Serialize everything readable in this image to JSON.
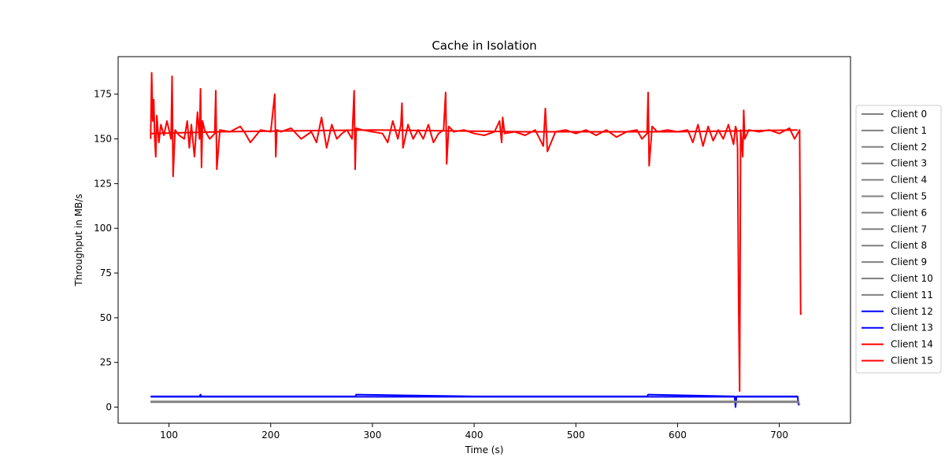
{
  "chart_data": {
    "type": "line",
    "title": "Cache in  Isolation",
    "xlabel": "Time (s)",
    "ylabel": "Throughput in MB/s",
    "xlim": [
      50,
      770
    ],
    "ylim": [
      -9,
      196
    ],
    "xticks": [
      100,
      200,
      300,
      400,
      500,
      600,
      700
    ],
    "yticks": [
      0,
      25,
      50,
      75,
      100,
      125,
      150,
      175
    ],
    "grid": false,
    "legend_placement": "outside-right",
    "colors": {
      "gray": "#808080",
      "blue": "#0000ff",
      "red": "#ff0000"
    },
    "legend": [
      {
        "name": "Client 0",
        "color": "#808080"
      },
      {
        "name": "Client 1",
        "color": "#808080"
      },
      {
        "name": "Client 2",
        "color": "#808080"
      },
      {
        "name": "Client 3",
        "color": "#808080"
      },
      {
        "name": "Client 4",
        "color": "#808080"
      },
      {
        "name": "Client 5",
        "color": "#808080"
      },
      {
        "name": "Client 6",
        "color": "#808080"
      },
      {
        "name": "Client 7",
        "color": "#808080"
      },
      {
        "name": "Client 8",
        "color": "#808080"
      },
      {
        "name": "Client 9",
        "color": "#808080"
      },
      {
        "name": "Client 10",
        "color": "#808080"
      },
      {
        "name": "Client 11",
        "color": "#808080"
      },
      {
        "name": "Client 12",
        "color": "#0000ff"
      },
      {
        "name": "Client 13",
        "color": "#0000ff"
      },
      {
        "name": "Client 14",
        "color": "#ff0000"
      },
      {
        "name": "Client 15",
        "color": "#ff0000"
      }
    ],
    "series": [
      {
        "name": "Client 15",
        "color": "#ff0000",
        "x": [
          82,
          83,
          84,
          85,
          86,
          87,
          88,
          90,
          92,
          95,
          98,
          100,
          102,
          103,
          104,
          106,
          110,
          115,
          118,
          120,
          122,
          125,
          128,
          130,
          131,
          132,
          133,
          135,
          140,
          145,
          146,
          147,
          150,
          160,
          170,
          175,
          180,
          190,
          200,
          204,
          205,
          206,
          210,
          220,
          230,
          240,
          245,
          250,
          255,
          260,
          265,
          270,
          275,
          280,
          282,
          283,
          284,
          290,
          300,
          310,
          315,
          320,
          325,
          328,
          329,
          330,
          335,
          340,
          345,
          350,
          355,
          360,
          365,
          370,
          372,
          373,
          375,
          380,
          390,
          400,
          410,
          420,
          425,
          427,
          428,
          430,
          440,
          450,
          460,
          468,
          470,
          472,
          480,
          490,
          500,
          510,
          520,
          530,
          540,
          550,
          560,
          565,
          570,
          571,
          572,
          575,
          580,
          590,
          600,
          610,
          615,
          620,
          625,
          630,
          635,
          640,
          645,
          650,
          655,
          657,
          658,
          659,
          660,
          661,
          662,
          664,
          665,
          666,
          670,
          680,
          690,
          700,
          710,
          715,
          720,
          721,
          722
        ],
        "y": [
          150,
          187,
          160,
          172,
          150,
          140,
          163,
          148,
          158,
          152,
          160,
          155,
          150,
          185,
          129,
          155,
          152,
          150,
          160,
          145,
          158,
          140,
          165,
          150,
          178,
          134,
          160,
          155,
          150,
          153,
          177,
          133,
          155,
          154,
          157,
          153,
          148,
          155,
          154,
          175,
          140,
          155,
          154,
          156,
          150,
          154,
          148,
          162,
          145,
          158,
          150,
          153,
          155,
          150,
          177,
          133,
          156,
          155,
          154,
          153,
          148,
          160,
          150,
          158,
          170,
          145,
          158,
          150,
          155,
          150,
          158,
          148,
          153,
          155,
          176,
          136,
          157,
          154,
          155,
          153,
          152,
          154,
          160,
          148,
          162,
          153,
          154,
          152,
          155,
          146,
          167,
          143,
          154,
          155,
          153,
          155,
          152,
          155,
          151,
          154,
          155,
          150,
          153,
          176,
          135,
          157,
          154,
          155,
          154,
          155,
          148,
          158,
          146,
          157,
          149,
          155,
          150,
          158,
          147,
          157,
          155,
          145,
          60,
          9,
          155,
          140,
          166,
          150,
          155,
          154,
          155,
          153,
          156,
          150,
          155,
          52,
          52
        ]
      },
      {
        "name": "Client 14",
        "color": "#ff0000",
        "x": [
          82,
          150,
          300,
          450,
          600,
          718
        ],
        "y": [
          153,
          154,
          155,
          154,
          154,
          155
        ]
      },
      {
        "name": "Client 12",
        "color": "#0000ff",
        "x": [
          82,
          100,
          130,
          131,
          132,
          200,
          283,
          284,
          400,
          500,
          570,
          571,
          656,
          657,
          658,
          659,
          660,
          718,
          719
        ],
        "y": [
          6,
          6,
          6,
          7,
          6,
          6,
          6,
          7,
          6,
          6,
          6,
          7,
          6,
          0,
          6,
          6,
          6,
          6,
          1
        ]
      },
      {
        "name": "Client 13",
        "color": "#0000ff",
        "x": [
          82,
          300,
          500,
          718
        ],
        "y": [
          5.8,
          5.8,
          5.8,
          5.8
        ]
      },
      {
        "name": "Client 0",
        "color": "#808080",
        "x": [
          82,
          200,
          400,
          600,
          719,
          720
        ],
        "y": [
          3,
          3,
          3,
          3,
          3,
          1
        ]
      },
      {
        "name": "Client 1",
        "color": "#808080",
        "x": [
          82,
          718
        ],
        "y": [
          2.8,
          2.8
        ]
      },
      {
        "name": "Client 2",
        "color": "#808080",
        "x": [
          82,
          718
        ],
        "y": [
          3.2,
          3.2
        ]
      },
      {
        "name": "Client 3",
        "color": "#808080",
        "x": [
          82,
          718
        ],
        "y": [
          2.9,
          2.9
        ]
      },
      {
        "name": "Client 4",
        "color": "#808080",
        "x": [
          82,
          718
        ],
        "y": [
          3.1,
          3.1
        ]
      }
    ]
  }
}
